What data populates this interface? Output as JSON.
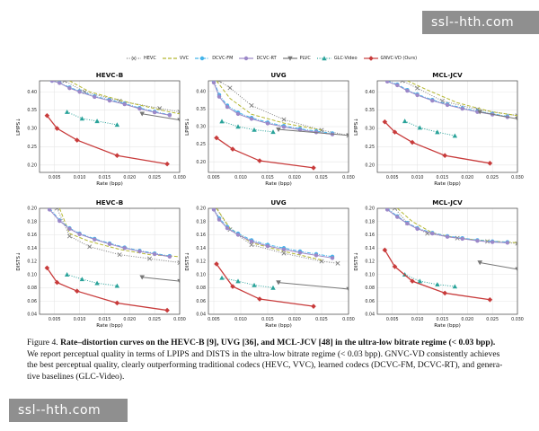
{
  "watermarks": {
    "top": "ssl--hth.com",
    "bottom": "ssl--hth.com"
  },
  "legend": [
    {
      "name": "HEVC",
      "color": "#808080",
      "style": "dotted",
      "marker": "x"
    },
    {
      "name": "VVC",
      "color": "#b5b832",
      "style": "dashed",
      "marker": ""
    },
    {
      "name": "DCVC-FM",
      "color": "#44b4ea",
      "style": "dashdot",
      "marker": "o"
    },
    {
      "name": "DCVC-RT",
      "color": "#9c88c8",
      "style": "solid",
      "marker": "o"
    },
    {
      "name": "PLVC",
      "color": "#777777",
      "style": "solid",
      "marker": "v"
    },
    {
      "name": "GLC-Video",
      "color": "#2aa39a",
      "style": "dotted",
      "marker": "^"
    },
    {
      "name": "GNVC-VD (Ours)",
      "color": "#c83b3b",
      "style": "solid",
      "marker": "D"
    }
  ],
  "chart_data": [
    {
      "type": "line",
      "title": "HEVC-B",
      "xlabel": "Rate (bpp)",
      "ylabel": "LPIPS↓",
      "xlim": [
        0.002,
        0.03
      ],
      "ylim": [
        0.18,
        0.43
      ],
      "xticks": [
        "0.005",
        "0.010",
        "0.015",
        "0.020",
        "0.025",
        "0.030"
      ],
      "yticks": [
        "0.20",
        "0.25",
        "0.30",
        "0.35",
        "0.40"
      ],
      "series": [
        {
          "name": "HEVC",
          "x": [
            0.007,
            0.011,
            0.018,
            0.026,
            0.03
          ],
          "y": [
            0.43,
            0.4,
            0.375,
            0.355,
            0.345
          ]
        },
        {
          "name": "VVC",
          "x": [
            0.008,
            0.012,
            0.02,
            0.028,
            0.03
          ],
          "y": [
            0.43,
            0.4,
            0.37,
            0.345,
            0.34
          ]
        },
        {
          "name": "DCVC-FM",
          "x": [
            0.0045,
            0.006,
            0.008,
            0.01,
            0.013,
            0.016,
            0.019,
            0.022,
            0.025,
            0.028
          ],
          "y": [
            0.43,
            0.425,
            0.412,
            0.402,
            0.388,
            0.378,
            0.368,
            0.356,
            0.346,
            0.337
          ]
        },
        {
          "name": "DCVC-RT",
          "x": [
            0.0045,
            0.006,
            0.008,
            0.01,
            0.013,
            0.016,
            0.019,
            0.022,
            0.025,
            0.028
          ],
          "y": [
            0.43,
            0.424,
            0.41,
            0.4,
            0.386,
            0.376,
            0.366,
            0.354,
            0.344,
            0.336
          ]
        },
        {
          "name": "PLVC",
          "x": [
            0.0225,
            0.03
          ],
          "y": [
            0.34,
            0.323
          ]
        },
        {
          "name": "GLC-Video",
          "x": [
            0.0075,
            0.0105,
            0.0135,
            0.0175
          ],
          "y": [
            0.345,
            0.327,
            0.32,
            0.31
          ]
        },
        {
          "name": "GNVC-VD (Ours)",
          "x": [
            0.0035,
            0.0055,
            0.0095,
            0.0175,
            0.0275
          ],
          "y": [
            0.335,
            0.3,
            0.268,
            0.226,
            0.203
          ]
        }
      ]
    },
    {
      "type": "line",
      "title": "UVG",
      "xlabel": "Rate (bpp)",
      "ylabel": "LPIPS↓",
      "xlim": [
        0.004,
        0.03
      ],
      "ylim": [
        0.17,
        0.43
      ],
      "xticks": [
        "0.005",
        "0.010",
        "0.015",
        "0.020",
        "0.025",
        "0.030"
      ],
      "yticks": [
        "0.20",
        "0.25",
        "0.30",
        "0.35",
        "0.40"
      ],
      "series": [
        {
          "name": "HEVC",
          "x": [
            0.006,
            0.008,
            0.012,
            0.018,
            0.025,
            0.03
          ],
          "y": [
            0.43,
            0.41,
            0.36,
            0.32,
            0.29,
            0.275
          ]
        },
        {
          "name": "VVC",
          "x": [
            0.0055,
            0.008,
            0.012,
            0.018,
            0.025
          ],
          "y": [
            0.43,
            0.38,
            0.335,
            0.31,
            0.29
          ]
        },
        {
          "name": "DCVC-FM",
          "x": [
            0.005,
            0.006,
            0.0075,
            0.0095,
            0.012,
            0.015,
            0.018,
            0.021,
            0.024,
            0.027
          ],
          "y": [
            0.43,
            0.39,
            0.36,
            0.34,
            0.325,
            0.312,
            0.302,
            0.294,
            0.287,
            0.281
          ]
        },
        {
          "name": "DCVC-RT",
          "x": [
            0.005,
            0.006,
            0.0075,
            0.0095,
            0.012,
            0.015,
            0.018,
            0.021,
            0.024,
            0.027
          ],
          "y": [
            0.425,
            0.385,
            0.356,
            0.336,
            0.322,
            0.309,
            0.299,
            0.291,
            0.284,
            0.278
          ]
        },
        {
          "name": "PLVC",
          "x": [
            0.017,
            0.03
          ],
          "y": [
            0.292,
            0.275
          ]
        },
        {
          "name": "GLC-Video",
          "x": [
            0.0065,
            0.0095,
            0.0125,
            0.016
          ],
          "y": [
            0.315,
            0.3,
            0.291,
            0.285
          ]
        },
        {
          "name": "GNVC-VD (Ours)",
          "x": [
            0.0055,
            0.0085,
            0.0135,
            0.0235
          ],
          "y": [
            0.268,
            0.236,
            0.203,
            0.183
          ]
        }
      ]
    },
    {
      "type": "line",
      "title": "MCL-JCV",
      "xlabel": "Rate (bpp)",
      "ylabel": "LPIPS↓",
      "xlim": [
        0.002,
        0.03
      ],
      "ylim": [
        0.18,
        0.43
      ],
      "xticks": [
        "0.005",
        "0.010",
        "0.015",
        "0.020",
        "0.025",
        "0.030"
      ],
      "yticks": [
        "0.20",
        "0.25",
        "0.30",
        "0.35",
        "0.40"
      ],
      "series": [
        {
          "name": "HEVC",
          "x": [
            0.007,
            0.01,
            0.015,
            0.022,
            0.03
          ],
          "y": [
            0.43,
            0.41,
            0.375,
            0.352,
            0.335
          ]
        },
        {
          "name": "VVC",
          "x": [
            0.008,
            0.012,
            0.018,
            0.025,
            0.03
          ],
          "y": [
            0.43,
            0.405,
            0.37,
            0.345,
            0.335
          ]
        },
        {
          "name": "DCVC-FM",
          "x": [
            0.004,
            0.006,
            0.008,
            0.01,
            0.013,
            0.016,
            0.019,
            0.022,
            0.025,
            0.028
          ],
          "y": [
            0.43,
            0.42,
            0.405,
            0.393,
            0.378,
            0.366,
            0.356,
            0.347,
            0.34,
            0.333
          ]
        },
        {
          "name": "DCVC-RT",
          "x": [
            0.004,
            0.006,
            0.008,
            0.01,
            0.013,
            0.016,
            0.019,
            0.022,
            0.025,
            0.028
          ],
          "y": [
            0.428,
            0.418,
            0.403,
            0.391,
            0.376,
            0.364,
            0.354,
            0.345,
            0.338,
            0.331
          ]
        },
        {
          "name": "PLVC",
          "x": [
            0.0225,
            0.03
          ],
          "y": [
            0.345,
            0.326
          ]
        },
        {
          "name": "GLC-Video",
          "x": [
            0.0075,
            0.0105,
            0.014,
            0.0175
          ],
          "y": [
            0.32,
            0.302,
            0.29,
            0.28
          ]
        },
        {
          "name": "GNVC-VD (Ours)",
          "x": [
            0.0035,
            0.0055,
            0.009,
            0.0155,
            0.0245
          ],
          "y": [
            0.318,
            0.29,
            0.262,
            0.226,
            0.205
          ]
        }
      ]
    },
    {
      "type": "line",
      "title": "HEVC-B",
      "xlabel": "Rate (bpp)",
      "ylabel": "DISTS↓",
      "xlim": [
        0.002,
        0.03
      ],
      "ylim": [
        0.04,
        0.2
      ],
      "xticks": [
        "0.005",
        "0.010",
        "0.015",
        "0.020",
        "0.025",
        "0.030"
      ],
      "yticks": [
        "0.04",
        "0.06",
        "0.08",
        "0.10",
        "0.12",
        "0.14",
        "0.16",
        "0.18",
        "0.20"
      ],
      "series": [
        {
          "name": "HEVC",
          "x": [
            0.0055,
            0.008,
            0.012,
            0.018,
            0.024,
            0.03
          ],
          "y": [
            0.2,
            0.158,
            0.142,
            0.13,
            0.124,
            0.118
          ]
        },
        {
          "name": "VVC",
          "x": [
            0.006,
            0.008,
            0.012,
            0.018,
            0.024,
            0.03
          ],
          "y": [
            0.2,
            0.162,
            0.15,
            0.138,
            0.13,
            0.127
          ]
        },
        {
          "name": "DCVC-FM",
          "x": [
            0.004,
            0.006,
            0.008,
            0.01,
            0.013,
            0.016,
            0.019,
            0.022,
            0.025,
            0.028
          ],
          "y": [
            0.2,
            0.182,
            0.17,
            0.162,
            0.154,
            0.147,
            0.141,
            0.136,
            0.132,
            0.128
          ]
        },
        {
          "name": "DCVC-RT",
          "x": [
            0.004,
            0.006,
            0.008,
            0.01,
            0.013,
            0.016,
            0.019,
            0.022,
            0.025,
            0.028
          ],
          "y": [
            0.198,
            0.181,
            0.169,
            0.161,
            0.153,
            0.146,
            0.14,
            0.135,
            0.131,
            0.127
          ]
        },
        {
          "name": "PLVC",
          "x": [
            0.0225,
            0.03
          ],
          "y": [
            0.096,
            0.09
          ]
        },
        {
          "name": "GLC-Video",
          "x": [
            0.0075,
            0.0105,
            0.0135,
            0.0175
          ],
          "y": [
            0.1,
            0.093,
            0.087,
            0.083
          ]
        },
        {
          "name": "GNVC-VD (Ours)",
          "x": [
            0.0035,
            0.0055,
            0.0095,
            0.0175,
            0.0275
          ],
          "y": [
            0.11,
            0.088,
            0.075,
            0.057,
            0.046
          ]
        }
      ]
    },
    {
      "type": "line",
      "title": "UVG",
      "xlabel": "Rate (bpp)",
      "ylabel": "DISTS↓",
      "xlim": [
        0.004,
        0.03
      ],
      "ylim": [
        0.04,
        0.2
      ],
      "xticks": [
        "0.005",
        "0.010",
        "0.015",
        "0.020",
        "0.025",
        "0.030"
      ],
      "yticks": [
        "0.04",
        "0.06",
        "0.08",
        "0.10",
        "0.12",
        "0.14",
        "0.16",
        "0.18",
        "0.20"
      ],
      "series": [
        {
          "name": "HEVC",
          "x": [
            0.0055,
            0.008,
            0.012,
            0.018,
            0.025,
            0.028
          ],
          "y": [
            0.2,
            0.168,
            0.145,
            0.132,
            0.12,
            0.117
          ]
        },
        {
          "name": "VVC",
          "x": [
            0.0055,
            0.008,
            0.012,
            0.018,
            0.025
          ],
          "y": [
            0.2,
            0.17,
            0.148,
            0.135,
            0.122
          ]
        },
        {
          "name": "DCVC-FM",
          "x": [
            0.005,
            0.006,
            0.0075,
            0.0095,
            0.012,
            0.015,
            0.018,
            0.021,
            0.024,
            0.027
          ],
          "y": [
            0.2,
            0.185,
            0.172,
            0.162,
            0.152,
            0.145,
            0.14,
            0.135,
            0.131,
            0.127
          ]
        },
        {
          "name": "DCVC-RT",
          "x": [
            0.005,
            0.006,
            0.0075,
            0.0095,
            0.012,
            0.015,
            0.018,
            0.021,
            0.024,
            0.027
          ],
          "y": [
            0.198,
            0.183,
            0.17,
            0.16,
            0.15,
            0.143,
            0.138,
            0.133,
            0.129,
            0.125
          ]
        },
        {
          "name": "PLVC",
          "x": [
            0.017,
            0.03
          ],
          "y": [
            0.088,
            0.078
          ]
        },
        {
          "name": "GLC-Video",
          "x": [
            0.0065,
            0.0095,
            0.0125,
            0.016
          ],
          "y": [
            0.095,
            0.09,
            0.084,
            0.08
          ]
        },
        {
          "name": "GNVC-VD (Ours)",
          "x": [
            0.0055,
            0.0085,
            0.0135,
            0.0235
          ],
          "y": [
            0.116,
            0.082,
            0.063,
            0.052
          ]
        }
      ]
    },
    {
      "type": "line",
      "title": "MCL-JCV",
      "xlabel": "Rate (bpp)",
      "ylabel": "DISTS↓",
      "xlim": [
        0.002,
        0.03
      ],
      "ylim": [
        0.04,
        0.2
      ],
      "xticks": [
        "0.005",
        "0.010",
        "0.015",
        "0.020",
        "0.025",
        "0.030"
      ],
      "yticks": [
        "0.04",
        "0.06",
        "0.08",
        "0.10",
        "0.12",
        "0.14",
        "0.16",
        "0.18",
        "0.20"
      ],
      "series": [
        {
          "name": "HEVC",
          "x": [
            0.0055,
            0.008,
            0.012,
            0.018,
            0.024,
            0.03
          ],
          "y": [
            0.2,
            0.178,
            0.162,
            0.155,
            0.15,
            0.147
          ]
        },
        {
          "name": "VVC",
          "x": [
            0.006,
            0.009,
            0.013,
            0.018,
            0.024,
            0.03
          ],
          "y": [
            0.2,
            0.18,
            0.163,
            0.155,
            0.151,
            0.148
          ]
        },
        {
          "name": "DCVC-FM",
          "x": [
            0.004,
            0.006,
            0.008,
            0.01,
            0.013,
            0.016,
            0.019,
            0.022,
            0.025,
            0.028
          ],
          "y": [
            0.2,
            0.188,
            0.178,
            0.17,
            0.163,
            0.158,
            0.155,
            0.152,
            0.15,
            0.149
          ]
        },
        {
          "name": "DCVC-RT",
          "x": [
            0.004,
            0.006,
            0.008,
            0.01,
            0.013,
            0.016,
            0.019,
            0.022,
            0.025,
            0.028
          ],
          "y": [
            0.198,
            0.187,
            0.177,
            0.169,
            0.162,
            0.157,
            0.154,
            0.151,
            0.149,
            0.148
          ]
        },
        {
          "name": "PLVC",
          "x": [
            0.0225,
            0.03
          ],
          "y": [
            0.118,
            0.108
          ]
        },
        {
          "name": "GLC-Video",
          "x": [
            0.0075,
            0.0105,
            0.014,
            0.0175
          ],
          "y": [
            0.1,
            0.09,
            0.085,
            0.082
          ]
        },
        {
          "name": "GNVC-VD (Ours)",
          "x": [
            0.0035,
            0.0055,
            0.009,
            0.0155,
            0.0245
          ],
          "y": [
            0.137,
            0.112,
            0.09,
            0.072,
            0.062
          ]
        }
      ]
    }
  ],
  "caption": {
    "label": "Figure 4.",
    "head": "Rate–distortion curves on the HEVC-B [9], UVG [36], and MCL-JCV [48] in the ultra-low bitrate regime (< 0.03 bpp).",
    "body_lines": [
      "We report perceptual quality in terms of LPIPS and DISTS in the ultra-low bitrate regime (< 0.03 bpp). GNVC-VD consistently achieves",
      "the best perceptual quality, clearly outperforming traditional codecs (HEVC, VVC), learned codecs (DCVC-FM, DCVC-RT), and genera-",
      "tive baselines (GLC-Video)."
    ]
  }
}
